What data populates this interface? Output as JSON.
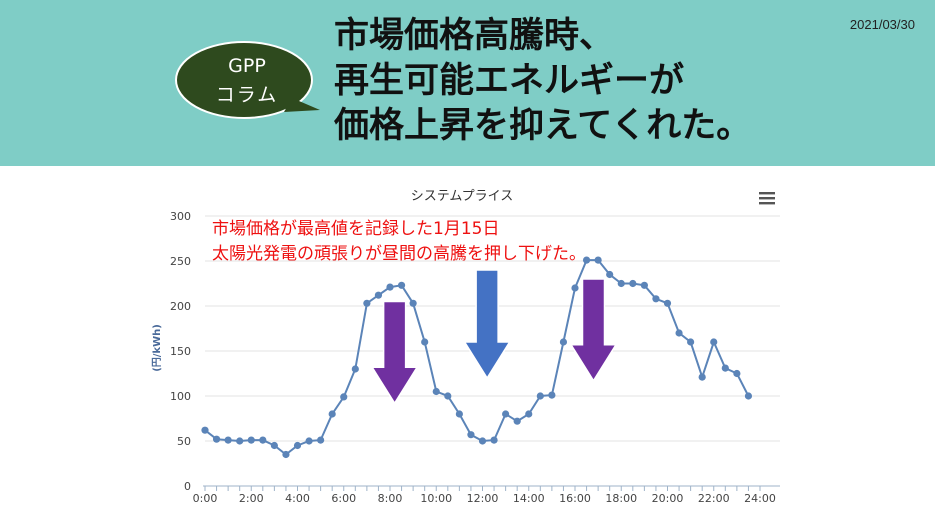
{
  "header": {
    "badge_line1": "GPP",
    "badge_line2": "コラム",
    "headline": [
      "市場価格高騰時、",
      "再生可能エネルギーが",
      "価格上昇を抑えてくれた。"
    ],
    "date": "2021/03/30",
    "colors": {
      "band": "#7fcdc6",
      "badge": "#2e4a1e"
    }
  },
  "chart_data": {
    "type": "line",
    "title": "システムプライス",
    "ylabel": "(円/kWh)",
    "xlabel": "",
    "ylim": [
      0,
      300
    ],
    "yticks": [
      0,
      50,
      100,
      150,
      200,
      250,
      300
    ],
    "xlim": [
      0,
      24
    ],
    "xtick_labels": [
      "0:00",
      "2:00",
      "4:00",
      "6:00",
      "8:00",
      "10:00",
      "12:00",
      "14:00",
      "16:00",
      "18:00",
      "20:00",
      "22:00",
      "24:00"
    ],
    "grid": "horizontal",
    "menu_icon": "hamburger-icon",
    "annotations": [
      "市場価格が最高値を記録した1月15日",
      "太陽光発電の頑張りが昼間の高騰を押し下げた。"
    ],
    "annotation_color": "#ee1111",
    "line_color": "#5b84b8",
    "series": [
      {
        "x": [
          0,
          0.5,
          1,
          1.5,
          2,
          2.5,
          3,
          3.5,
          4,
          4.5,
          5,
          5.5,
          6,
          6.5,
          7,
          7.5,
          8,
          8.5,
          9,
          9.5,
          10,
          10.5,
          11,
          11.5,
          12,
          12.5,
          13,
          13.5,
          14,
          14.5,
          15,
          15.5,
          16,
          16.5,
          17,
          17.5,
          18,
          18.5,
          19,
          19.5,
          20,
          20.5,
          21,
          21.5,
          22,
          22.5,
          23,
          23.5
        ],
        "values": [
          62,
          52,
          51,
          50,
          51,
          51,
          45,
          35,
          45,
          50,
          51,
          80,
          99,
          130,
          203,
          212,
          221,
          223,
          203,
          160,
          105,
          100,
          80,
          57,
          50,
          51,
          80,
          72,
          80,
          100,
          101,
          160,
          220,
          251,
          251,
          235,
          225,
          225,
          223,
          208,
          203,
          170,
          160,
          121,
          160,
          131,
          125,
          100
        ]
      }
    ],
    "arrows": [
      {
        "x": 8.2,
        "from": 205,
        "to": 92,
        "color": "#7030a0"
      },
      {
        "x": 12.2,
        "from": 240,
        "to": 120,
        "color": "#4472c4"
      },
      {
        "x": 16.8,
        "from": 230,
        "to": 117,
        "color": "#7030a0"
      }
    ]
  }
}
